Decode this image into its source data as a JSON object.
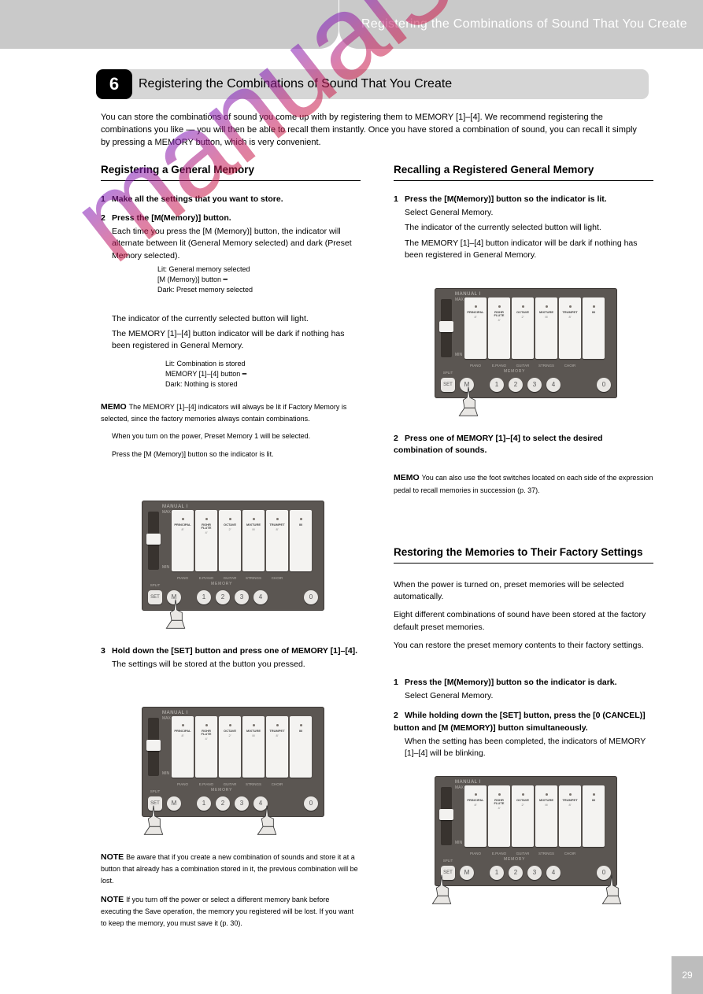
{
  "header": {
    "breadcrumb": "Registering the Combinations of Sound That You Create"
  },
  "title": {
    "badge": "6",
    "text": "Registering the Combinations of Sound That You Create"
  },
  "intro": "You can store the combinations of sound you come up with by registering them to MEMORY [1]–[4]. We recommend registering the combinations you like — you will then be able to recall them instantly. Once you have stored a combination of sound, you can recall it simply by pressing a MEMORY button, which is very convenient.",
  "left": {
    "subhead": "Registering a General Memory",
    "s1h": "Make all the settings that you want to store.",
    "s2h": "Press the [M(Memory)] button.",
    "s2b": "Each time you press the [M (Memory)] button, the indicator will alternate between lit (General Memory selected) and dark (Preset Memory selected).",
    "s2b2": "The indicator of the currently selected button will light.",
    "s2b3": "The MEMORY [1]–[4] button indicator will be dark if nothing has been registered in General Memory.",
    "s3h": "Hold down the [SET] button and press one of MEMORY [1]–[4].",
    "s3b": "The settings will be stored at the button you pressed.",
    "note1_label": "NOTE",
    "note1": "Be aware that if you create a new combination of sounds and store it at a button that already has a combination stored in it, the previous combination will be lost.",
    "note2_label": "NOTE",
    "note2": "If you turn off the power or select a different memory bank before executing the Save operation, the memory you registered will be lost. If you want to keep the memory, you must save it (p. 30)."
  },
  "right": {
    "subhead": "Recalling a Registered General Memory",
    "s1h": "Press the [M(Memory)] button so the indicator is lit.",
    "s1b": "Select General Memory.",
    "s1b2": "The indicator of the currently selected button will light.",
    "s1b3": "The MEMORY [1]–[4] button indicator will be dark if nothing has been registered in General Memory.",
    "s2h": "Press one of MEMORY [1]–[4] to select the desired combination of sounds.",
    "memo_label": "MEMO",
    "memo": "You can also use the foot switches located on each side of the expression pedal to recall memories in succession (p. 37).",
    "subhead2": "Restoring the Memories to Their Factory Settings",
    "p1": "When the power is turned on, preset memories will be selected automatically.",
    "p2": "Eight different combinations of sound have been stored at the factory default preset memories.",
    "p3": "You can restore the preset memory contents to their factory settings.",
    "s1h2": "Press the [M(Memory)] button so the indicator is dark.",
    "s1b4": "Select General Memory.",
    "s2h2": "While holding down the [SET] button, press the [0 (CANCEL)] button and [M (MEMORY)] button simultaneously.",
    "s2b2": "When the setting has been completed, the indicators of MEMORY [1]–[4] will be blinking."
  },
  "panel": {
    "label": "MANUAL I",
    "max": "MAX",
    "min": "MIN",
    "tabs": [
      {
        "l1": "PRINCIPAL",
        "l2": "8'"
      },
      {
        "l1": "ROHR FLUTE",
        "l2": "4'"
      },
      {
        "l1": "OCTAVE",
        "l2": "2'"
      },
      {
        "l1": "MIXTURE",
        "l2": "III"
      },
      {
        "l1": "TRUMPET",
        "l2": "8'"
      },
      {
        "l1": "II/I",
        "l2": ""
      }
    ],
    "tab_footers": [
      "PIANO",
      "E.PIANO",
      "GUITAR",
      "STRINGS",
      "CHOIR",
      ""
    ],
    "memory_label": "MEMORY",
    "btns": {
      "set": "SET",
      "m": "M",
      "n1": "1",
      "n2": "2",
      "n3": "3",
      "n4": "4",
      "cancel": "0",
      "split": "SPLIT"
    }
  },
  "page": "29"
}
